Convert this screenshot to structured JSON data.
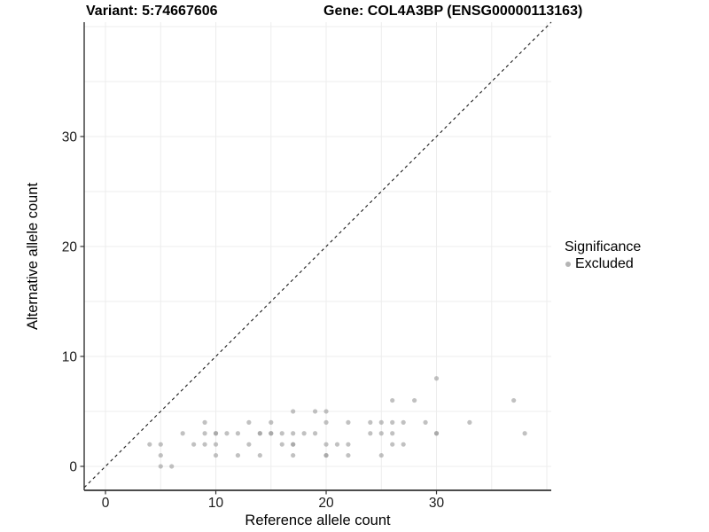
{
  "title": {
    "variant": "Variant: 5:74667606",
    "gene": "Gene: COL4A3BP (ENSG00000113163)"
  },
  "chart_data": {
    "type": "scatter",
    "title": "Variant: 5:74667606  Gene: COL4A3BP (ENSG00000113163)",
    "xlabel": "Reference allele count",
    "ylabel": "Alternative allele count",
    "xlim": [
      -1.93,
      40.4
    ],
    "ylim": [
      -2.18,
      40.4
    ],
    "x_ticks": [
      0,
      10,
      20,
      30
    ],
    "y_ticks": [
      0,
      10,
      20,
      30
    ],
    "gridline_step": 5,
    "grid_on": true,
    "gridline_color": "#ededed",
    "axis_line_color": "#333333",
    "tick_label_color": "#1a1a1a",
    "identity_line": {
      "style": "dashed",
      "color": "#1a1a1a",
      "slope": 1,
      "intercept": 0
    },
    "point_color": "#a0a0a0",
    "point_opacity": 0.65,
    "point_radius": 2.6,
    "series": [
      {
        "name": "Excluded",
        "points": [
          [
            4,
            2
          ],
          [
            5,
            2
          ],
          [
            5,
            1
          ],
          [
            5,
            0
          ],
          [
            6,
            0
          ],
          [
            7,
            3
          ],
          [
            8,
            2
          ],
          [
            9,
            4
          ],
          [
            9,
            3
          ],
          [
            9,
            2
          ],
          [
            10,
            3
          ],
          [
            10,
            2
          ],
          [
            10,
            1
          ],
          [
            11,
            3
          ],
          [
            12,
            3
          ],
          [
            12,
            1
          ],
          [
            13,
            4
          ],
          [
            13,
            2
          ],
          [
            14,
            3
          ],
          [
            14,
            1
          ],
          [
            15,
            4
          ],
          [
            15,
            3
          ],
          [
            16,
            3
          ],
          [
            16,
            2
          ],
          [
            17,
            5
          ],
          [
            17,
            3
          ],
          [
            17,
            2
          ],
          [
            17,
            1
          ],
          [
            18,
            3
          ],
          [
            19,
            5
          ],
          [
            19,
            3
          ],
          [
            20,
            5
          ],
          [
            20,
            4
          ],
          [
            20,
            2
          ],
          [
            20,
            1
          ],
          [
            21,
            2
          ],
          [
            22,
            4
          ],
          [
            22,
            2
          ],
          [
            22,
            1
          ],
          [
            24,
            4
          ],
          [
            24,
            3
          ],
          [
            25,
            4
          ],
          [
            25,
            3
          ],
          [
            25,
            1
          ],
          [
            26,
            6
          ],
          [
            26,
            4
          ],
          [
            26,
            3
          ],
          [
            26,
            2
          ],
          [
            27,
            4
          ],
          [
            27,
            2
          ],
          [
            28,
            6
          ],
          [
            29,
            4
          ],
          [
            30,
            8
          ],
          [
            30,
            3
          ],
          [
            33,
            4
          ],
          [
            37,
            6
          ],
          [
            38,
            3
          ]
        ],
        "overplotted": [
          [
            10,
            3
          ],
          [
            14,
            3
          ],
          [
            15,
            3
          ],
          [
            17,
            2
          ],
          [
            20,
            1
          ],
          [
            30,
            3
          ]
        ]
      }
    ],
    "legend": {
      "position": "right",
      "title": "Significance",
      "items": [
        {
          "label": "Excluded",
          "color": "#b4b4b4"
        }
      ]
    }
  }
}
